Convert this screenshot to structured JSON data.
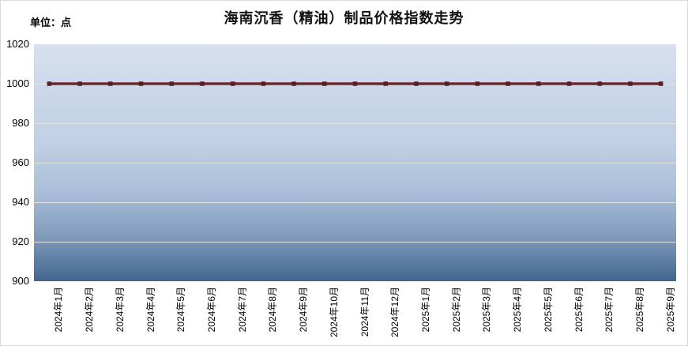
{
  "header": {
    "title": "海南沉香（精油）制品价格指数走势",
    "unit_label": "单位：点"
  },
  "chart_data": {
    "type": "line",
    "title": "海南沉香（精油）制品价格指数走势",
    "unit": "单位：点",
    "categories": [
      "2024年1月",
      "2024年2月",
      "2024年3月",
      "2024年4月",
      "2024年5月",
      "2024年6月",
      "2024年7月",
      "2024年8月",
      "2024年9月",
      "2024年10月",
      "2024年11月",
      "2024年12月",
      "2025年1月",
      "2025年2月",
      "2025年3月",
      "2025年4月",
      "2025年5月",
      "2025年6月",
      "2025年7月",
      "2025年8月",
      "2025年9月"
    ],
    "values": [
      1000,
      1000,
      1000,
      1000,
      1000,
      1000,
      1000,
      1000,
      1000,
      1000,
      1000,
      1000,
      1000,
      1000,
      1000,
      1000,
      1000,
      1000,
      1000,
      1000,
      1000
    ],
    "xlabel": "",
    "ylabel": "",
    "ylim": [
      900,
      1020
    ],
    "ytick_step": 20,
    "grid": true,
    "legend": "none",
    "colors": {
      "line": "#70282c",
      "marker": "#551e21",
      "plot_bg_top": "#d6e0ef",
      "plot_bg_bottom": "#42658e",
      "gridline": "#e2e2df"
    }
  }
}
